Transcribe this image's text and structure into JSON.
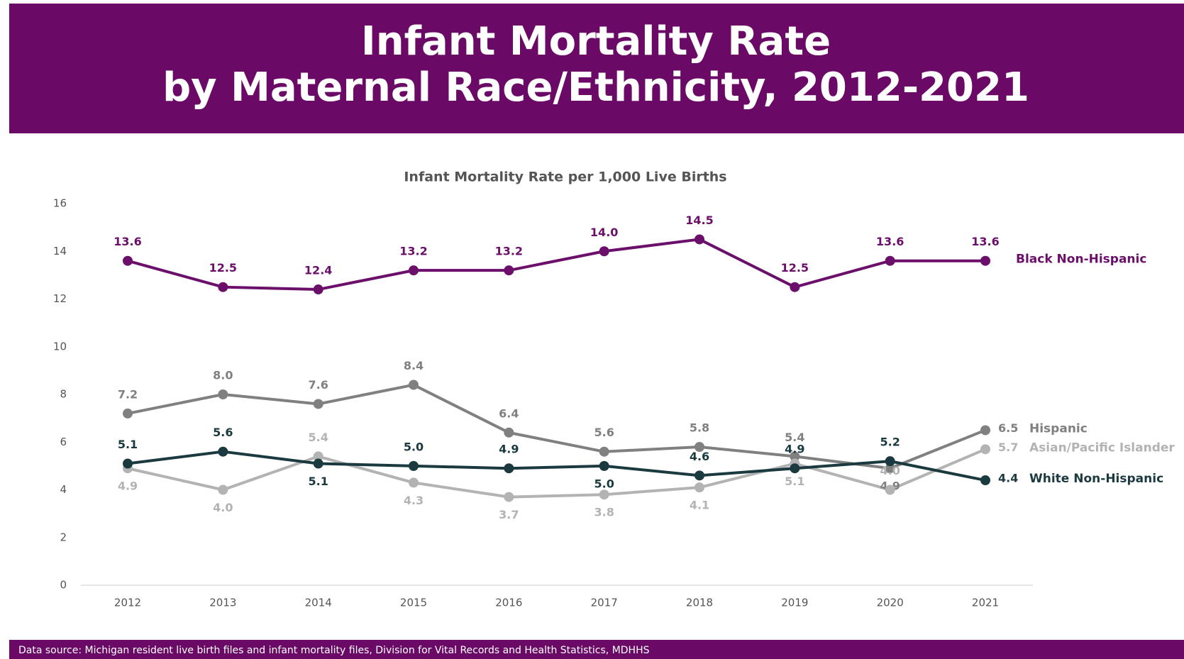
{
  "chart_data": {
    "type": "line",
    "title": "Infant Mortality Rate",
    "title2": "by Maternal Race/Ethnicity, 2012-2021",
    "subtitle": "Infant Mortality Rate per 1,000 Live Births",
    "source": "Data source: Michigan resident live birth files and infant mortality files, Division for Vital Records and Health Statistics, MDHHS",
    "categories": [
      "2012",
      "2013",
      "2014",
      "2015",
      "2016",
      "2017",
      "2018",
      "2019",
      "2020",
      "2021"
    ],
    "ylim": [
      0,
      16
    ],
    "yticks": [
      0,
      2,
      4,
      6,
      8,
      10,
      12,
      14,
      16
    ],
    "grid": false,
    "series": [
      {
        "name": "Black Non-Hispanic",
        "color": "#6b0f6b",
        "values": [
          13.6,
          12.5,
          12.4,
          13.2,
          13.2,
          14.0,
          14.5,
          12.5,
          13.6,
          13.6
        ],
        "value_labels": [
          "13.6",
          "12.5",
          "12.4",
          "13.2",
          "13.2",
          "14.0",
          "14.5",
          "12.5",
          "13.6",
          "13.6"
        ]
      },
      {
        "name": "Hispanic",
        "color": "#808080",
        "values": [
          7.2,
          8.0,
          7.6,
          8.4,
          6.4,
          5.6,
          5.8,
          5.4,
          4.9,
          6.5
        ],
        "value_labels": [
          "7.2",
          "8.0",
          "7.6",
          "8.4",
          "6.4",
          "5.6",
          "5.8",
          "5.4",
          "4.9",
          "6.5"
        ]
      },
      {
        "name": "Asian/Pacific Islander",
        "color": "#b3b3b3",
        "values": [
          4.9,
          4.0,
          5.4,
          4.3,
          3.7,
          3.8,
          4.1,
          5.1,
          4.0,
          5.7
        ],
        "value_labels": [
          "4.9",
          "4.0",
          "5.4",
          "4.3",
          "3.7",
          "3.8",
          "4.1",
          "5.1",
          "4.0",
          "5.7"
        ]
      },
      {
        "name": "White Non-Hispanic",
        "color": "#1b3a40",
        "values": [
          5.1,
          5.6,
          5.1,
          5.0,
          4.9,
          5.0,
          4.6,
          4.9,
          5.2,
          4.4
        ],
        "value_labels": [
          "5.1",
          "5.6",
          "5.1",
          "5.0",
          "4.9",
          "5.0",
          "4.6",
          "4.9",
          "5.2",
          "4.4"
        ]
      }
    ]
  }
}
